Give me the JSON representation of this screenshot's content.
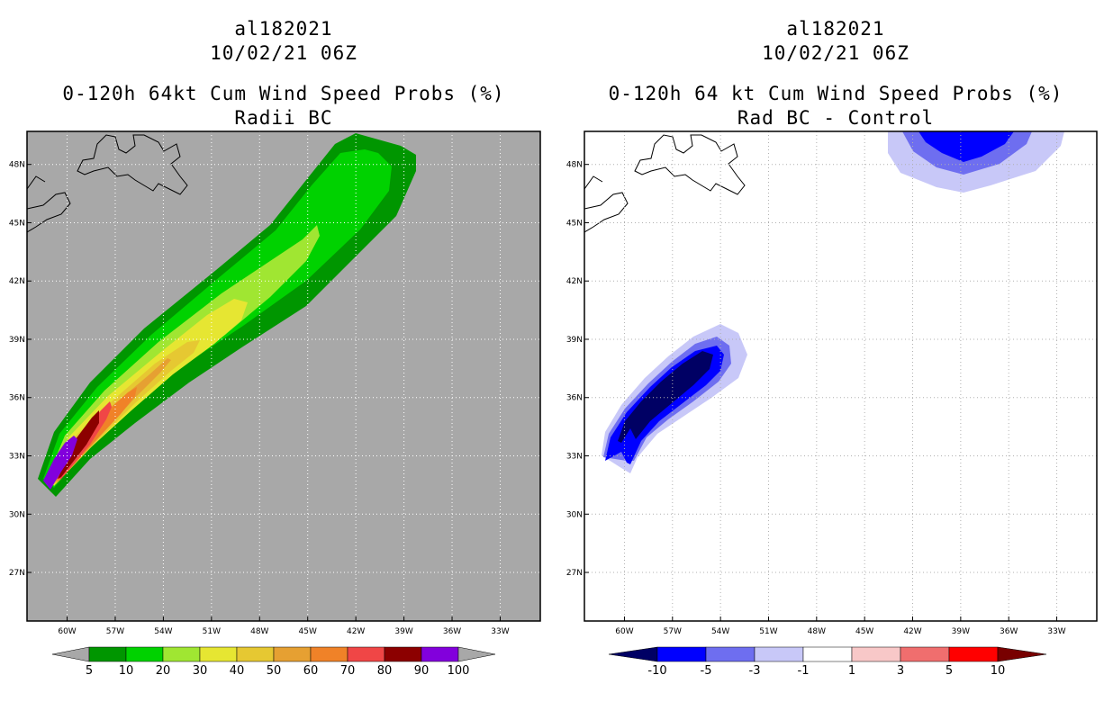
{
  "left_panel": {
    "title_lines": [
      "al182021",
      "10/02/21 06Z",
      "0-120h 64kt Cum Wind Speed Probs (%)",
      "Radii BC"
    ],
    "background_color": "#a8a8a8",
    "colorbar": {
      "colors": [
        "#a8a8a8",
        "#009600",
        "#00d200",
        "#a0e632",
        "#e6e632",
        "#e6c832",
        "#e6a032",
        "#f08228",
        "#f04646",
        "#8c0000",
        "#8200dc",
        "#a8a8a8"
      ],
      "labels": [
        "5",
        "10",
        "20",
        "30",
        "40",
        "50",
        "60",
        "70",
        "80",
        "90",
        "100"
      ]
    }
  },
  "right_panel": {
    "title_lines": [
      "al182021",
      "10/02/21 06Z",
      "0-120h 64 kt Cum Wind Speed Probs (%)",
      "Rad BC - Control"
    ],
    "background_color": "#ffffff",
    "colorbar": {
      "colors": [
        "#000064",
        "#0000ff",
        "#6e6ef0",
        "#c8c8f8",
        "#ffffff",
        "#f8c8c8",
        "#f06e6e",
        "#ff0000",
        "#780000"
      ],
      "labels": [
        "-10",
        "-5",
        "-3",
        "-1",
        "1",
        "3",
        "5",
        "10"
      ]
    }
  },
  "map": {
    "lat_labels": [
      "48N",
      "45N",
      "42N",
      "39N",
      "36N",
      "33N",
      "30N",
      "27N"
    ],
    "lon_labels": [
      "60W",
      "57W",
      "54W",
      "51W",
      "48W",
      "45W",
      "42W",
      "39W",
      "36W",
      "33W"
    ],
    "lat_values": [
      48,
      45,
      42,
      39,
      36,
      33,
      30,
      27
    ],
    "lon_values": [
      -60,
      -57,
      -54,
      -51,
      -48,
      -45,
      -42,
      -39,
      -36,
      -33
    ],
    "lon_range": [
      -62.5,
      -30.5
    ],
    "lat_range": [
      24.5,
      49.7
    ]
  }
}
